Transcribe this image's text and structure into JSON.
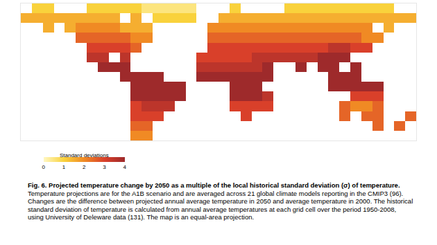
{
  "chart_data": {
    "type": "heatmap",
    "x": [
      -175,
      -165,
      -155,
      -145,
      -135,
      -125,
      -115,
      -105,
      -95,
      -85,
      -75,
      -65,
      -55,
      -45,
      -35,
      -25,
      -15,
      -5,
      5,
      15,
      25,
      35,
      45,
      55,
      65,
      75,
      85,
      95,
      105,
      115,
      125,
      135,
      145,
      155,
      165,
      175
    ],
    "y": [
      75,
      65,
      55,
      45,
      35,
      25,
      15,
      5,
      -5,
      -15,
      -25,
      -35,
      -45,
      -55
    ],
    "z": [
      [
        null,
        1,
        1,
        null,
        null,
        null,
        1,
        1,
        1,
        1,
        1,
        0.5,
        0.5,
        0.5,
        0.5,
        0.5,
        null,
        null,
        null,
        1,
        null,
        null,
        null,
        null,
        1,
        1,
        1,
        1,
        1,
        1,
        1,
        1,
        1,
        1,
        null,
        null
      ],
      [
        1.5,
        1.5,
        1.5,
        1.5,
        1.5,
        1.5,
        1.5,
        1.5,
        1.5,
        null,
        1.5,
        null,
        1,
        1,
        1,
        1,
        null,
        null,
        1.5,
        1.5,
        1.5,
        1.5,
        1.5,
        1.5,
        1.5,
        1.5,
        1.5,
        1.5,
        1.5,
        1.5,
        1.5,
        1.5,
        1.5,
        1.5,
        1.5,
        1.5
      ],
      [
        null,
        null,
        1.5,
        null,
        1.5,
        2,
        2,
        2,
        2,
        1.5,
        1.5,
        1.5,
        null,
        null,
        null,
        null,
        null,
        2,
        2,
        2,
        2,
        2,
        2,
        2,
        2,
        2,
        2,
        2,
        2,
        2,
        2,
        2,
        null,
        1.5,
        null,
        null
      ],
      [
        null,
        null,
        null,
        null,
        null,
        2.5,
        2.5,
        2.5,
        2.5,
        2.5,
        2,
        2,
        null,
        null,
        null,
        null,
        null,
        2.5,
        2.5,
        2.5,
        2.5,
        2.5,
        2.5,
        2.5,
        2.5,
        2.5,
        2.5,
        2.5,
        2.5,
        2.5,
        2.5,
        2,
        2,
        null,
        null,
        null
      ],
      [
        null,
        null,
        null,
        null,
        null,
        null,
        3,
        3,
        3,
        3,
        2.5,
        null,
        null,
        null,
        null,
        null,
        null,
        3,
        3,
        3,
        3,
        3,
        3,
        3,
        3,
        3,
        3,
        3,
        3.5,
        3.5,
        3,
        3,
        null,
        null,
        null,
        null
      ],
      [
        null,
        null,
        null,
        null,
        null,
        null,
        3.5,
        3.5,
        null,
        3.5,
        null,
        null,
        null,
        null,
        null,
        null,
        3,
        3,
        3,
        3,
        3,
        3.5,
        3.5,
        3.5,
        3.5,
        3.5,
        3.5,
        4,
        4,
        4,
        null,
        null,
        null,
        null,
        null,
        null
      ],
      [
        null,
        null,
        null,
        null,
        null,
        null,
        null,
        4,
        4,
        4,
        null,
        null,
        null,
        null,
        null,
        null,
        3.5,
        3.5,
        3.5,
        3.5,
        3.5,
        3.5,
        4,
        null,
        null,
        4,
        null,
        4,
        4,
        null,
        4,
        null,
        null,
        null,
        null,
        null
      ],
      [
        null,
        null,
        null,
        null,
        null,
        null,
        null,
        null,
        null,
        4,
        4,
        4,
        4,
        null,
        null,
        null,
        4,
        4,
        4,
        4,
        4,
        4,
        4,
        null,
        null,
        null,
        null,
        null,
        4,
        4,
        4,
        null,
        null,
        null,
        null,
        null
      ],
      [
        null,
        null,
        null,
        null,
        null,
        null,
        null,
        null,
        null,
        null,
        4,
        4,
        4,
        4,
        4,
        null,
        null,
        null,
        null,
        4,
        4,
        4,
        null,
        null,
        null,
        null,
        null,
        null,
        4,
        4,
        4,
        4,
        4,
        null,
        null,
        null
      ],
      [
        null,
        null,
        null,
        null,
        null,
        null,
        null,
        null,
        null,
        null,
        4,
        4,
        4,
        4,
        4,
        null,
        null,
        null,
        null,
        4,
        4,
        4,
        3.5,
        null,
        null,
        null,
        null,
        null,
        null,
        null,
        3,
        3,
        3,
        null,
        null,
        null
      ],
      [
        null,
        null,
        null,
        null,
        null,
        null,
        null,
        null,
        null,
        null,
        3,
        3.5,
        3.5,
        3.5,
        null,
        null,
        null,
        null,
        null,
        3,
        3,
        3,
        3,
        null,
        null,
        null,
        null,
        null,
        null,
        2.5,
        2,
        2,
        2.5,
        null,
        null,
        null
      ],
      [
        null,
        null,
        null,
        null,
        null,
        null,
        null,
        null,
        null,
        null,
        3,
        3,
        3,
        null,
        null,
        null,
        null,
        null,
        null,
        null,
        3,
        null,
        null,
        null,
        null,
        null,
        null,
        null,
        null,
        2.5,
        null,
        2.5,
        2.5,
        null,
        null,
        2.5
      ],
      [
        null,
        null,
        null,
        null,
        null,
        null,
        null,
        null,
        null,
        null,
        2.5,
        2.5,
        null,
        null,
        null,
        null,
        null,
        null,
        null,
        null,
        null,
        null,
        null,
        null,
        null,
        null,
        null,
        null,
        null,
        null,
        null,
        null,
        2.5,
        null,
        2.5,
        null
      ],
      [
        null,
        null,
        null,
        null,
        null,
        null,
        null,
        null,
        null,
        null,
        2,
        2,
        null,
        null,
        null,
        null,
        null,
        null,
        null,
        null,
        null,
        null,
        null,
        null,
        null,
        null,
        null,
        null,
        null,
        null,
        null,
        null,
        null,
        null,
        null,
        null
      ]
    ],
    "xlim": [
      -180,
      180
    ],
    "ylim": [
      -60,
      80
    ],
    "tick_labels": false,
    "colorbar": {
      "title": "Standard deviations",
      "range": [
        0,
        4
      ],
      "ticks": [
        0,
        1,
        2,
        3,
        4
      ]
    }
  },
  "caption": {
    "title": "Fig. 6. Projected temperature change by 2050 as a multiple of the local historical standard deviation (σ) of temperature.",
    "text": "Temperature projections are for the A1B scenario and are averaged across 21 global climate models reporting in the CMIP3 (96). Changes are the difference between projected annual average temperature in 2050 and average temperature in 2000. The historical standard deviation of temperature is calculated from annual average temperatures at each grid cell over the period 1950-2008, using University of Deleware data (131). The map is an equal-area projection."
  }
}
